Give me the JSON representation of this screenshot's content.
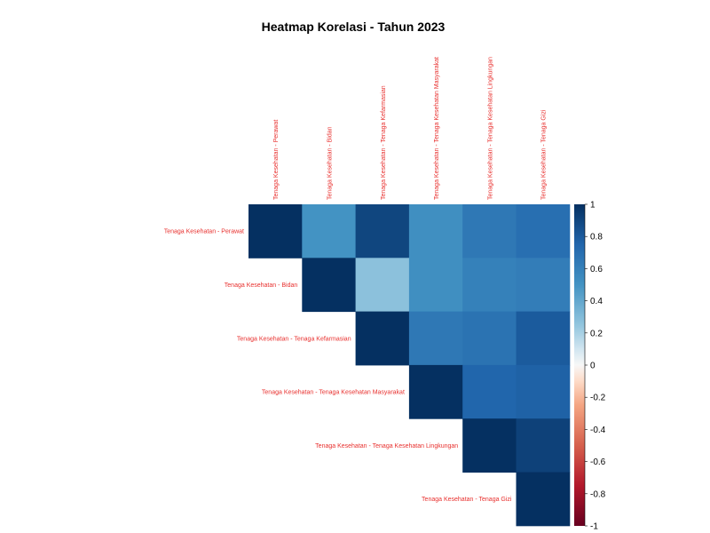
{
  "chart_data": {
    "type": "heatmap",
    "title": "Heatmap Korelasi - Tahun 2023",
    "variables": [
      "Tenaga Kesehatan - Perawat",
      "Tenaga Kesehatan - Bidan",
      "Tenaga Kesehatan - Tenaga Kefarmasian",
      "Tenaga Kesehatan - Tenaga Kesehatan Masyarakat",
      "Tenaga Kesehatan - Tenaga Kesehatan Lingkungan",
      "Tenaga Kesehatan - Tenaga Gizi"
    ],
    "matrix": [
      [
        1.0,
        0.5,
        0.9,
        0.52,
        0.65,
        0.7
      ],
      [
        null,
        1.0,
        0.27,
        0.52,
        0.6,
        0.62
      ],
      [
        null,
        null,
        1.0,
        0.65,
        0.68,
        0.8
      ],
      [
        null,
        null,
        null,
        1.0,
        0.75,
        0.77
      ],
      [
        null,
        null,
        null,
        null,
        1.0,
        0.92
      ],
      [
        null,
        null,
        null,
        null,
        null,
        1.0
      ]
    ],
    "triangle": "upper",
    "colorbar": {
      "range": [
        -1,
        1
      ],
      "ticks": [
        "1",
        "0.8",
        "0.6",
        "0.4",
        "0.2",
        "0",
        "-0.2",
        "-0.4",
        "-0.6",
        "-0.8",
        "-1"
      ]
    },
    "label_color": "#e8302e",
    "colors": {
      "negative_end": "#67001f",
      "neutral": "#f7f7f7",
      "positive_end": "#053061"
    }
  }
}
